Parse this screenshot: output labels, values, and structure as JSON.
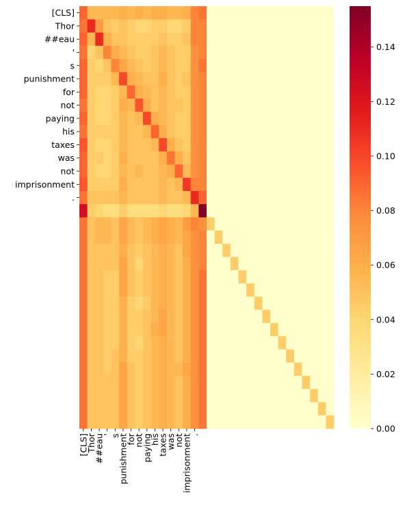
{
  "chart_data": {
    "type": "heatmap",
    "title": "",
    "xlabel": "",
    "ylabel": "",
    "tokens": [
      "[CLS]",
      "Thor",
      "##eau",
      "'",
      "s",
      "punishment",
      "for",
      "not",
      "paying",
      "his",
      "taxes",
      "was",
      "not",
      "imprisonment",
      "."
    ],
    "grid_size": 32,
    "row_tick_labels": [
      "[CLS]",
      "Thor",
      "##eau",
      "'",
      "s",
      "punishment",
      "for",
      "not",
      "paying",
      "his",
      "taxes",
      "was",
      "not",
      "imprisonment",
      "."
    ],
    "col_tick_labels": [
      "[CLS]",
      "Thor",
      "##eau",
      "'",
      "s",
      "punishment",
      "for",
      "not",
      "paying",
      "his",
      "taxes",
      "was",
      "not",
      "imprisonment",
      "."
    ],
    "colorbar": {
      "colormap": "YlOrRd",
      "vmin": 0.0,
      "vmax": 0.155,
      "ticks": [
        0.0,
        0.02,
        0.04,
        0.06,
        0.08,
        0.1,
        0.12,
        0.14
      ],
      "tick_labels": [
        "0.00",
        "0.02",
        "0.04",
        "0.06",
        "0.08",
        "0.10",
        "0.12",
        "0.14"
      ]
    },
    "notes": "Attention matrix over 32 positions; first 16 columns hold token attention, remaining cells are padding (~0.0) except diagonal (~0.04).",
    "values": [
      [
        0.09,
        0.055,
        0.055,
        0.055,
        0.055,
        0.06,
        0.055,
        0.06,
        0.055,
        0.06,
        0.06,
        0.055,
        0.055,
        0.06,
        0.08,
        0.085,
        0,
        0,
        0,
        0,
        0,
        0,
        0,
        0,
        0,
        0,
        0,
        0,
        0,
        0,
        0,
        0
      ],
      [
        0.085,
        0.11,
        0.07,
        0.05,
        0.045,
        0.05,
        0.045,
        0.04,
        0.04,
        0.045,
        0.045,
        0.04,
        0.04,
        0.045,
        0.08,
        0.08,
        0,
        0,
        0,
        0,
        0,
        0,
        0,
        0,
        0,
        0,
        0,
        0,
        0,
        0,
        0,
        0
      ],
      [
        0.09,
        0.055,
        0.11,
        0.06,
        0.05,
        0.05,
        0.045,
        0.045,
        0.045,
        0.045,
        0.05,
        0.045,
        0.045,
        0.05,
        0.08,
        0.08,
        0,
        0,
        0,
        0,
        0,
        0,
        0,
        0,
        0,
        0,
        0,
        0,
        0,
        0,
        0,
        0
      ],
      [
        0.085,
        0.04,
        0.05,
        0.08,
        0.06,
        0.055,
        0.05,
        0.045,
        0.045,
        0.05,
        0.055,
        0.05,
        0.045,
        0.045,
        0.075,
        0.08,
        0,
        0,
        0,
        0,
        0,
        0,
        0,
        0,
        0,
        0,
        0,
        0,
        0,
        0,
        0,
        0
      ],
      [
        0.09,
        0.045,
        0.04,
        0.05,
        0.08,
        0.065,
        0.055,
        0.05,
        0.045,
        0.05,
        0.055,
        0.05,
        0.045,
        0.045,
        0.075,
        0.085,
        0,
        0,
        0,
        0,
        0,
        0,
        0,
        0,
        0,
        0,
        0,
        0,
        0,
        0,
        0,
        0
      ],
      [
        0.09,
        0.045,
        0.045,
        0.045,
        0.055,
        0.1,
        0.06,
        0.055,
        0.05,
        0.05,
        0.06,
        0.05,
        0.045,
        0.05,
        0.075,
        0.08,
        0,
        0,
        0,
        0,
        0,
        0,
        0,
        0,
        0,
        0,
        0,
        0,
        0,
        0,
        0,
        0
      ],
      [
        0.09,
        0.045,
        0.04,
        0.04,
        0.045,
        0.055,
        0.09,
        0.06,
        0.055,
        0.05,
        0.055,
        0.05,
        0.045,
        0.045,
        0.075,
        0.08,
        0,
        0,
        0,
        0,
        0,
        0,
        0,
        0,
        0,
        0,
        0,
        0,
        0,
        0,
        0,
        0
      ],
      [
        0.085,
        0.045,
        0.04,
        0.04,
        0.045,
        0.06,
        0.055,
        0.095,
        0.06,
        0.05,
        0.055,
        0.05,
        0.05,
        0.045,
        0.075,
        0.08,
        0,
        0,
        0,
        0,
        0,
        0,
        0,
        0,
        0,
        0,
        0,
        0,
        0,
        0,
        0,
        0
      ],
      [
        0.09,
        0.045,
        0.04,
        0.04,
        0.045,
        0.055,
        0.05,
        0.055,
        0.1,
        0.06,
        0.055,
        0.05,
        0.045,
        0.045,
        0.075,
        0.08,
        0,
        0,
        0,
        0,
        0,
        0,
        0,
        0,
        0,
        0,
        0,
        0,
        0,
        0,
        0,
        0
      ],
      [
        0.085,
        0.045,
        0.045,
        0.045,
        0.045,
        0.055,
        0.05,
        0.05,
        0.055,
        0.09,
        0.06,
        0.05,
        0.045,
        0.045,
        0.075,
        0.08,
        0,
        0,
        0,
        0,
        0,
        0,
        0,
        0,
        0,
        0,
        0,
        0,
        0,
        0,
        0,
        0
      ],
      [
        0.095,
        0.045,
        0.04,
        0.04,
        0.045,
        0.055,
        0.05,
        0.05,
        0.05,
        0.055,
        0.1,
        0.06,
        0.05,
        0.045,
        0.075,
        0.08,
        0,
        0,
        0,
        0,
        0,
        0,
        0,
        0,
        0,
        0,
        0,
        0,
        0,
        0,
        0,
        0
      ],
      [
        0.09,
        0.045,
        0.045,
        0.04,
        0.045,
        0.06,
        0.05,
        0.05,
        0.05,
        0.05,
        0.06,
        0.085,
        0.06,
        0.05,
        0.075,
        0.08,
        0,
        0,
        0,
        0,
        0,
        0,
        0,
        0,
        0,
        0,
        0,
        0,
        0,
        0,
        0,
        0
      ],
      [
        0.09,
        0.045,
        0.04,
        0.04,
        0.045,
        0.055,
        0.05,
        0.055,
        0.05,
        0.05,
        0.055,
        0.06,
        0.09,
        0.055,
        0.075,
        0.08,
        0,
        0,
        0,
        0,
        0,
        0,
        0,
        0,
        0,
        0,
        0,
        0,
        0,
        0,
        0,
        0
      ],
      [
        0.095,
        0.045,
        0.045,
        0.045,
        0.045,
        0.06,
        0.05,
        0.05,
        0.05,
        0.05,
        0.055,
        0.05,
        0.055,
        0.105,
        0.08,
        0.08,
        0,
        0,
        0,
        0,
        0,
        0,
        0,
        0,
        0,
        0,
        0,
        0,
        0,
        0,
        0,
        0
      ],
      [
        0.085,
        0.05,
        0.05,
        0.05,
        0.05,
        0.055,
        0.05,
        0.05,
        0.05,
        0.05,
        0.055,
        0.05,
        0.05,
        0.055,
        0.11,
        0.09,
        0,
        0,
        0,
        0,
        0,
        0,
        0,
        0,
        0,
        0,
        0,
        0,
        0,
        0,
        0,
        0
      ],
      [
        0.125,
        0.045,
        0.04,
        0.035,
        0.035,
        0.045,
        0.035,
        0.035,
        0.035,
        0.035,
        0.04,
        0.035,
        0.035,
        0.04,
        0.055,
        0.155,
        0,
        0,
        0,
        0,
        0,
        0,
        0,
        0,
        0,
        0,
        0,
        0,
        0,
        0,
        0,
        0
      ],
      [
        0.085,
        0.05,
        0.055,
        0.055,
        0.05,
        0.065,
        0.055,
        0.05,
        0.055,
        0.06,
        0.065,
        0.06,
        0.055,
        0.07,
        0.08,
        0.075,
        0.045,
        0,
        0,
        0,
        0,
        0,
        0,
        0,
        0,
        0,
        0,
        0,
        0,
        0,
        0,
        0
      ],
      [
        0.085,
        0.05,
        0.055,
        0.055,
        0.05,
        0.065,
        0.055,
        0.05,
        0.055,
        0.06,
        0.065,
        0.06,
        0.055,
        0.065,
        0.075,
        0.08,
        0,
        0.045,
        0,
        0,
        0,
        0,
        0,
        0,
        0,
        0,
        0,
        0,
        0,
        0,
        0,
        0
      ],
      [
        0.085,
        0.05,
        0.05,
        0.05,
        0.05,
        0.06,
        0.05,
        0.045,
        0.05,
        0.055,
        0.06,
        0.055,
        0.05,
        0.065,
        0.075,
        0.08,
        0,
        0,
        0.045,
        0,
        0,
        0,
        0,
        0,
        0,
        0,
        0,
        0,
        0,
        0,
        0,
        0
      ],
      [
        0.085,
        0.05,
        0.05,
        0.05,
        0.05,
        0.065,
        0.05,
        0.04,
        0.05,
        0.055,
        0.06,
        0.055,
        0.05,
        0.06,
        0.075,
        0.08,
        0,
        0,
        0,
        0.045,
        0,
        0,
        0,
        0,
        0,
        0,
        0,
        0,
        0,
        0,
        0,
        0
      ],
      [
        0.085,
        0.05,
        0.05,
        0.045,
        0.045,
        0.065,
        0.05,
        0.045,
        0.05,
        0.055,
        0.06,
        0.055,
        0.05,
        0.06,
        0.075,
        0.085,
        0,
        0,
        0,
        0,
        0.045,
        0,
        0,
        0,
        0,
        0,
        0,
        0,
        0,
        0,
        0,
        0
      ],
      [
        0.085,
        0.05,
        0.05,
        0.045,
        0.045,
        0.065,
        0.05,
        0.045,
        0.05,
        0.055,
        0.06,
        0.055,
        0.05,
        0.06,
        0.075,
        0.085,
        0,
        0,
        0,
        0,
        0,
        0.045,
        0,
        0,
        0,
        0,
        0,
        0,
        0,
        0,
        0,
        0
      ],
      [
        0.085,
        0.05,
        0.05,
        0.045,
        0.045,
        0.06,
        0.045,
        0.04,
        0.045,
        0.055,
        0.06,
        0.055,
        0.05,
        0.06,
        0.075,
        0.085,
        0,
        0,
        0,
        0,
        0,
        0,
        0.045,
        0,
        0,
        0,
        0,
        0,
        0,
        0,
        0,
        0
      ],
      [
        0.085,
        0.05,
        0.05,
        0.045,
        0.045,
        0.06,
        0.045,
        0.045,
        0.05,
        0.055,
        0.065,
        0.055,
        0.05,
        0.06,
        0.075,
        0.085,
        0,
        0,
        0,
        0,
        0,
        0,
        0,
        0.045,
        0,
        0,
        0,
        0,
        0,
        0,
        0,
        0
      ],
      [
        0.085,
        0.05,
        0.05,
        0.045,
        0.045,
        0.06,
        0.045,
        0.045,
        0.05,
        0.06,
        0.065,
        0.055,
        0.05,
        0.06,
        0.075,
        0.085,
        0,
        0,
        0,
        0,
        0,
        0,
        0,
        0,
        0.045,
        0,
        0,
        0,
        0,
        0,
        0,
        0
      ],
      [
        0.085,
        0.05,
        0.05,
        0.045,
        0.045,
        0.06,
        0.045,
        0.04,
        0.05,
        0.055,
        0.06,
        0.055,
        0.05,
        0.06,
        0.075,
        0.085,
        0,
        0,
        0,
        0,
        0,
        0,
        0,
        0,
        0,
        0.045,
        0,
        0,
        0,
        0,
        0,
        0
      ],
      [
        0.085,
        0.05,
        0.05,
        0.045,
        0.05,
        0.06,
        0.045,
        0.045,
        0.05,
        0.055,
        0.06,
        0.055,
        0.05,
        0.06,
        0.075,
        0.085,
        0,
        0,
        0,
        0,
        0,
        0,
        0,
        0,
        0,
        0,
        0.045,
        0,
        0,
        0,
        0,
        0
      ],
      [
        0.085,
        0.05,
        0.05,
        0.045,
        0.05,
        0.065,
        0.05,
        0.045,
        0.05,
        0.055,
        0.06,
        0.055,
        0.055,
        0.065,
        0.075,
        0.085,
        0,
        0,
        0,
        0,
        0,
        0,
        0,
        0,
        0,
        0,
        0,
        0.045,
        0,
        0,
        0,
        0
      ],
      [
        0.085,
        0.05,
        0.05,
        0.05,
        0.05,
        0.065,
        0.05,
        0.045,
        0.05,
        0.055,
        0.06,
        0.055,
        0.05,
        0.06,
        0.075,
        0.085,
        0,
        0,
        0,
        0,
        0,
        0,
        0,
        0,
        0,
        0,
        0,
        0,
        0.045,
        0,
        0,
        0
      ],
      [
        0.085,
        0.05,
        0.05,
        0.05,
        0.05,
        0.065,
        0.05,
        0.045,
        0.05,
        0.055,
        0.06,
        0.055,
        0.05,
        0.06,
        0.075,
        0.085,
        0,
        0,
        0,
        0,
        0,
        0,
        0,
        0,
        0,
        0,
        0,
        0,
        0,
        0.045,
        0,
        0
      ],
      [
        0.085,
        0.05,
        0.05,
        0.05,
        0.05,
        0.065,
        0.05,
        0.045,
        0.05,
        0.055,
        0.06,
        0.055,
        0.05,
        0.06,
        0.075,
        0.085,
        0,
        0,
        0,
        0,
        0,
        0,
        0,
        0,
        0,
        0,
        0,
        0,
        0,
        0,
        0.045,
        0
      ],
      [
        0.085,
        0.05,
        0.05,
        0.05,
        0.05,
        0.065,
        0.05,
        0.045,
        0.05,
        0.055,
        0.06,
        0.055,
        0.05,
        0.06,
        0.075,
        0.085,
        0,
        0,
        0,
        0,
        0,
        0,
        0,
        0,
        0,
        0,
        0,
        0,
        0,
        0,
        0,
        0.045
      ]
    ]
  }
}
